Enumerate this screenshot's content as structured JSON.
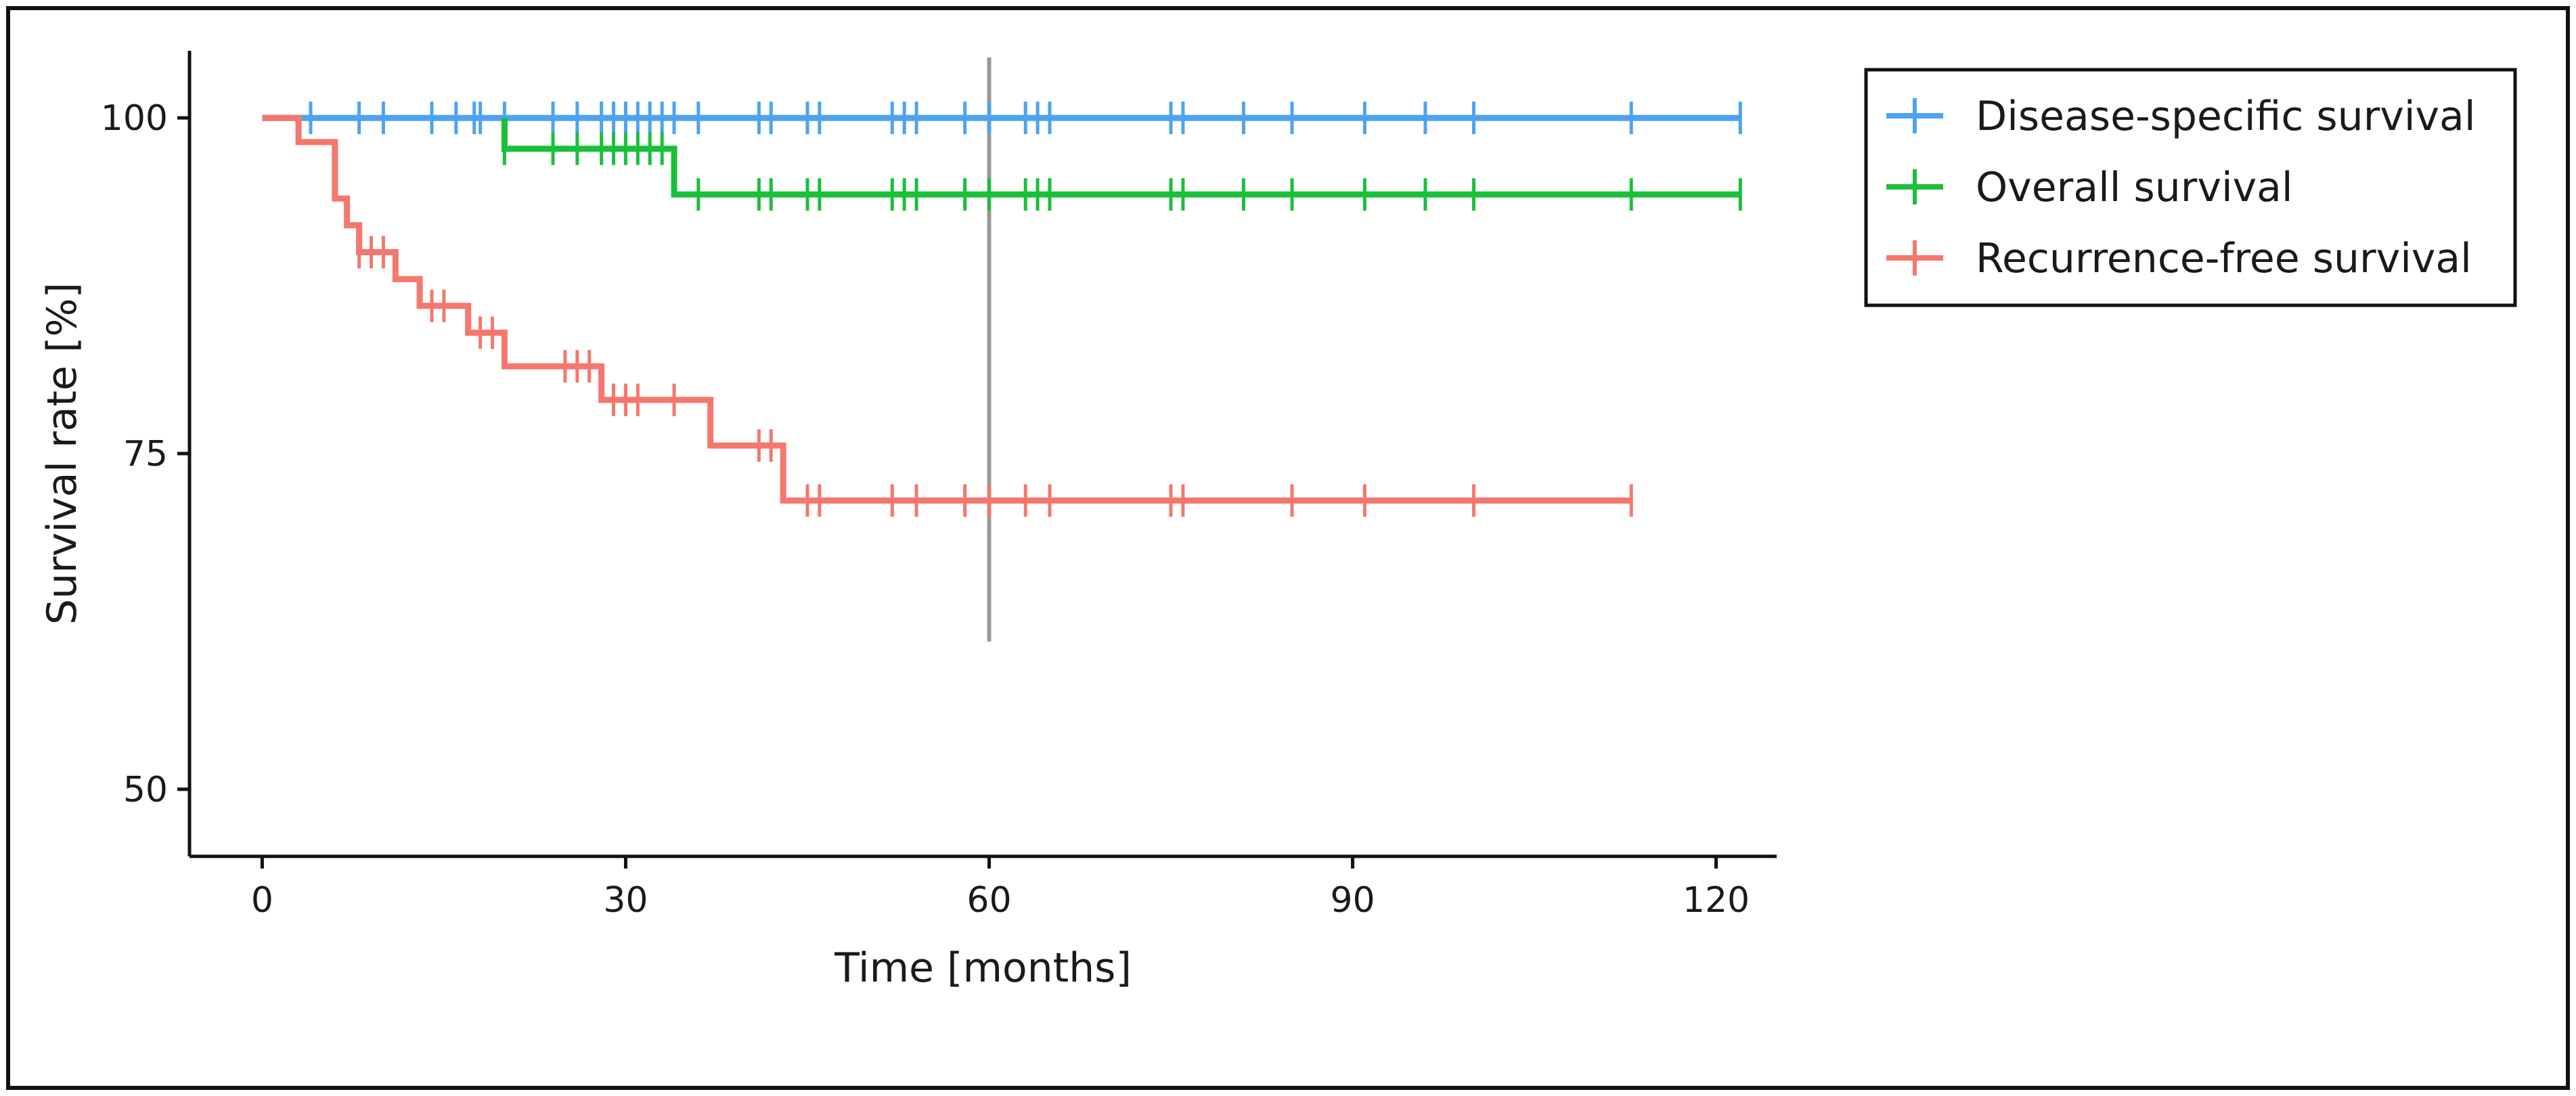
{
  "chart_data": {
    "type": "line",
    "subtype": "kaplan-meier step",
    "xlabel": "Time [months]",
    "ylabel": "Survival rate [%]",
    "xlim": [
      -6,
      125
    ],
    "ylim": [
      45,
      105
    ],
    "xticks": [
      0,
      30,
      60,
      90,
      120
    ],
    "yticks": [
      50,
      75,
      100
    ],
    "reference_line_x": 60,
    "reference_line_y_range": [
      61,
      104.5
    ],
    "grid": false,
    "legend_position": "top-right",
    "series": [
      {
        "name": "Disease-specific survival",
        "color": "#4DA3F0",
        "steps": [
          [
            0,
            100
          ],
          [
            122,
            100
          ]
        ],
        "censor_times": [
          4,
          8,
          10,
          14,
          16,
          17.5,
          18,
          20,
          24,
          26,
          28,
          29,
          30,
          31,
          32,
          33,
          34,
          36,
          41,
          42,
          45,
          46,
          52,
          53,
          54,
          58,
          60,
          63,
          64,
          65,
          75,
          76,
          81,
          85,
          91,
          96,
          100,
          113,
          122
        ]
      },
      {
        "name": "Overall survival",
        "color": "#19C039",
        "steps": [
          [
            20,
            100
          ],
          [
            20,
            97.7
          ],
          [
            34,
            97.7
          ],
          [
            34,
            94.3
          ],
          [
            122,
            94.3
          ]
        ],
        "censor_times": [
          20,
          24,
          26,
          28,
          29,
          30,
          31,
          32,
          33,
          36,
          41,
          42,
          45,
          46,
          52,
          53,
          54,
          58,
          60,
          63,
          64,
          65,
          75,
          76,
          81,
          85,
          91,
          96,
          100,
          113,
          122
        ]
      },
      {
        "name": "Recurrence-free survival",
        "color": "#F5776D",
        "steps": [
          [
            0,
            100
          ],
          [
            3,
            100
          ],
          [
            3,
            98.2
          ],
          [
            6,
            98.2
          ],
          [
            6,
            94
          ],
          [
            7,
            94
          ],
          [
            7,
            92
          ],
          [
            8,
            92
          ],
          [
            8,
            90
          ],
          [
            11,
            90
          ],
          [
            11,
            88
          ],
          [
            13,
            88
          ],
          [
            13,
            86
          ],
          [
            17,
            86
          ],
          [
            17,
            84
          ],
          [
            20,
            84
          ],
          [
            20,
            81.5
          ],
          [
            28,
            81.5
          ],
          [
            28,
            79
          ],
          [
            37,
            79
          ],
          [
            37,
            75.6
          ],
          [
            43,
            75.6
          ],
          [
            43,
            71.5
          ],
          [
            113,
            71.5
          ]
        ],
        "censor_times": [
          8,
          9,
          10,
          14,
          15,
          18,
          19,
          25,
          26,
          27,
          29,
          30,
          31,
          34,
          41,
          42,
          45,
          46,
          52,
          54,
          58,
          60,
          63,
          65,
          75,
          76,
          85,
          91,
          100,
          113
        ]
      }
    ]
  }
}
